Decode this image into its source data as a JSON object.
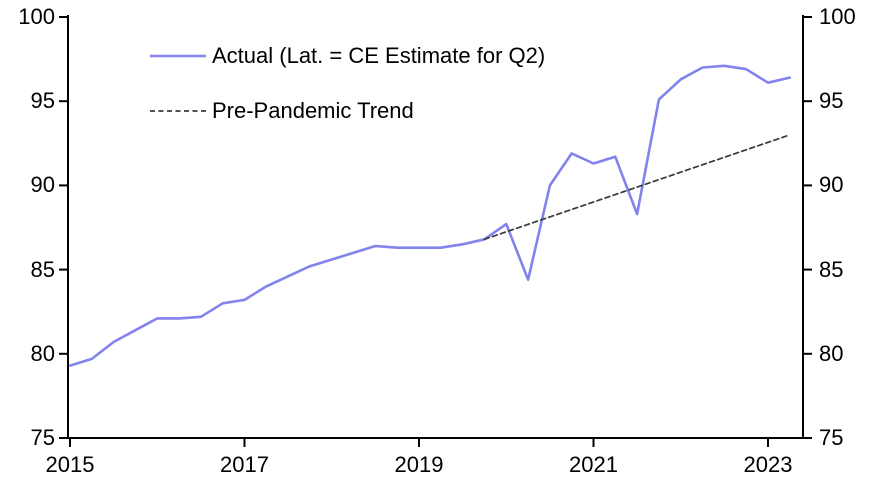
{
  "chart_data": {
    "type": "line",
    "title": "",
    "xlabel": "",
    "ylabel": "",
    "xlim": [
      2015,
      2023.4
    ],
    "ylim": [
      75,
      100
    ],
    "yticks": [
      75,
      80,
      85,
      90,
      95,
      100
    ],
    "xticks": [
      2015,
      2017,
      2019,
      2021,
      2023
    ],
    "grid": false,
    "legend_position": "top-left-inside",
    "axis_color": "#000000",
    "series": [
      {
        "name": "Actual (Lat. = CE Estimate for Q2)",
        "color": "#8383ee",
        "line_style": "solid",
        "x": [
          2015,
          2015.25,
          2015.5,
          2015.75,
          2016,
          2016.25,
          2016.5,
          2016.75,
          2017,
          2017.25,
          2017.5,
          2017.75,
          2018,
          2018.25,
          2018.5,
          2018.75,
          2019,
          2019.25,
          2019.5,
          2019.75,
          2020,
          2020.25,
          2020.5,
          2020.75,
          2021,
          2021.25,
          2021.5,
          2021.75,
          2022,
          2022.25,
          2022.5,
          2022.75,
          2023,
          2023.25
        ],
        "values": [
          79.3,
          79.7,
          80.7,
          81.4,
          82.1,
          82.1,
          82.2,
          83.0,
          83.2,
          84.0,
          84.6,
          85.2,
          85.6,
          86.0,
          86.4,
          86.3,
          86.3,
          86.3,
          86.5,
          86.8,
          87.7,
          84.4,
          90.0,
          91.9,
          91.3,
          91.7,
          88.3,
          95.1,
          96.3,
          97.0,
          97.1,
          96.9,
          96.1,
          96.4
        ]
      },
      {
        "name": "Pre-Pandemic Trend",
        "color": "#3a3a3a",
        "line_style": "dashed",
        "x": [
          2019.75,
          2023.25
        ],
        "values": [
          86.8,
          93.0
        ]
      }
    ]
  }
}
